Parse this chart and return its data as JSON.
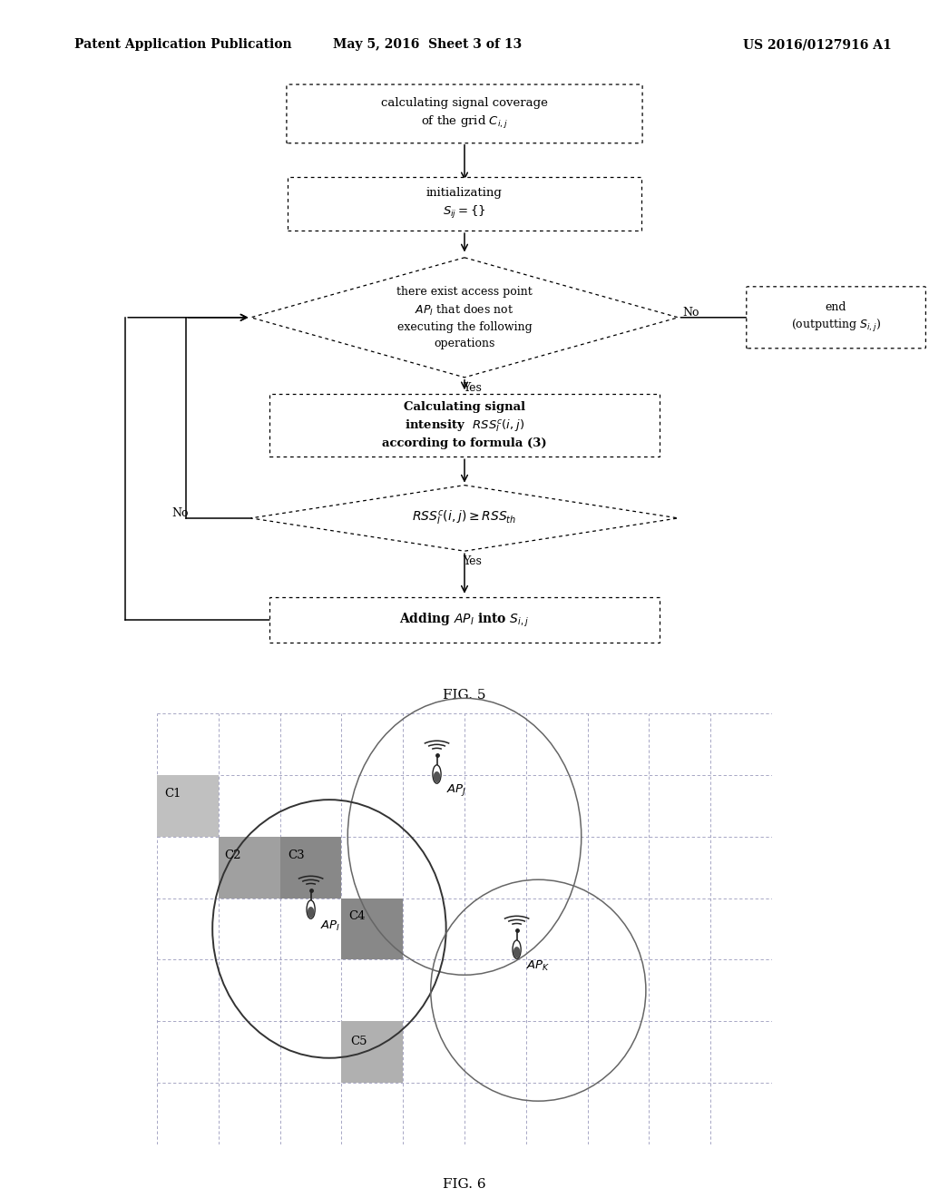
{
  "bg_color": "#ffffff",
  "header_left": "Patent Application Publication",
  "header_mid": "May 5, 2016  Sheet 3 of 13",
  "header_right": "US 2016/0127916 A1",
  "fig5_label": "FIG. 5",
  "fig6_label": "FIG. 6",
  "grid_color": "#9999bb",
  "grid_lw": 0.6,
  "cell_colors": {
    "C1": "#c0c0c0",
    "C2": "#a0a0a0",
    "C3": "#888888",
    "C4": "#888888",
    "C5": "#b0b0b0"
  }
}
